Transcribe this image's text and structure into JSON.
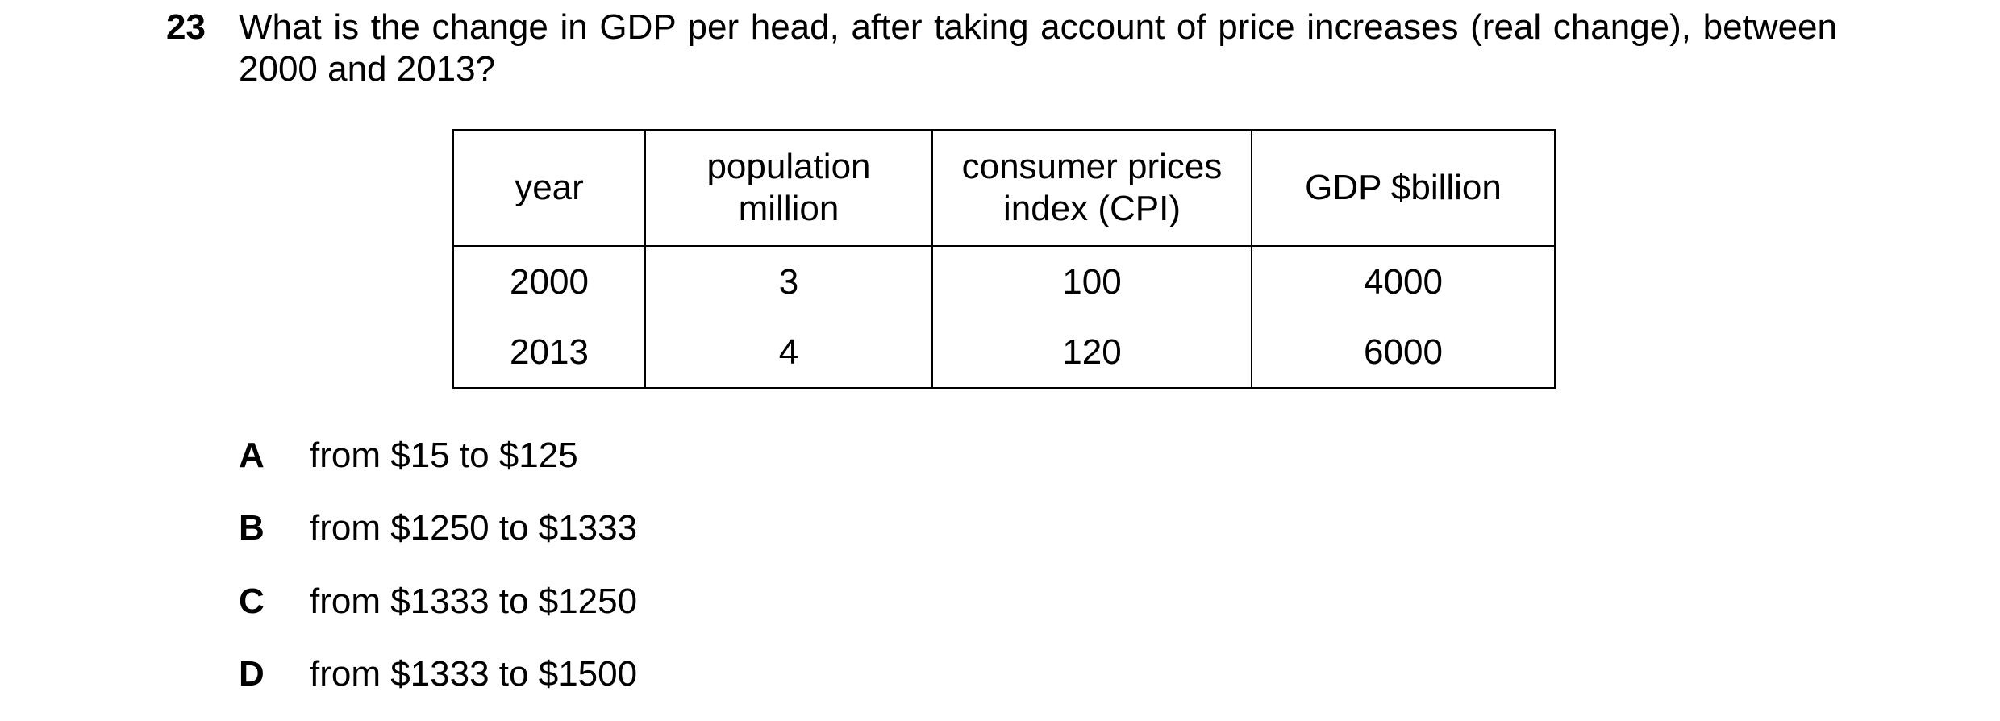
{
  "question": {
    "number": "23",
    "text": "What is the change in GDP per head, after taking account of price increases (real change), between 2000 and 2013?"
  },
  "table": {
    "headers": [
      [
        "year"
      ],
      [
        "population",
        "million"
      ],
      [
        "consumer prices",
        "index (CPI)"
      ],
      [
        "GDP $billion"
      ]
    ],
    "rows": [
      [
        "2000",
        "3",
        "100",
        "4000"
      ],
      [
        "2013",
        "4",
        "120",
        "6000"
      ]
    ]
  },
  "options": [
    {
      "letter": "A",
      "text": "from $15 to $125"
    },
    {
      "letter": "B",
      "text": "from $1250 to $1333"
    },
    {
      "letter": "C",
      "text": "from $1333 to $1250"
    },
    {
      "letter": "D",
      "text": "from $1333 to $1500"
    }
  ]
}
